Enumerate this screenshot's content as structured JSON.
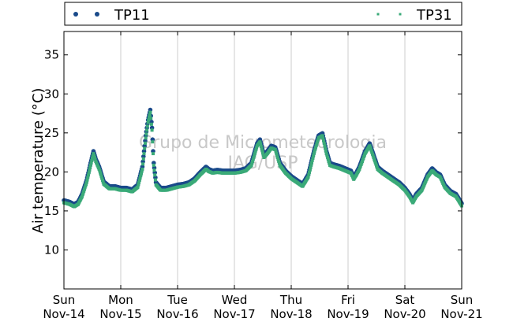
{
  "chart_data": {
    "type": "scatter",
    "ylabel": "Air temperature (°C)",
    "watermark": [
      "Grupo de Micrometeorologia",
      "IAG/USP"
    ],
    "ylim": [
      5,
      38
    ],
    "yticks": [
      10,
      15,
      20,
      25,
      30,
      35
    ],
    "xlim": [
      "2010-11-14",
      "2010-11-21"
    ],
    "xticks": [
      {
        "day": "Sun",
        "date": "Nov-14"
      },
      {
        "day": "Mon",
        "date": "Nov-15"
      },
      {
        "day": "Tue",
        "date": "Nov-16"
      },
      {
        "day": "Wed",
        "date": "Nov-17"
      },
      {
        "day": "Thu",
        "date": "Nov-18"
      },
      {
        "day": "Fri",
        "date": "Nov-19"
      },
      {
        "day": "Sat",
        "date": "Nov-20"
      },
      {
        "day": "Sun",
        "date": "Nov-21"
      }
    ],
    "grid": "vertical",
    "legend_position": "top",
    "series": [
      {
        "name": "TP11",
        "color": "#1a4a8a",
        "marker": "circle"
      },
      {
        "name": "TP31",
        "color": "#3aaa78",
        "marker": "square"
      }
    ],
    "x_unit": "days since Nov-14 00:00",
    "profile": [
      [
        0.0,
        16.2
      ],
      [
        0.1,
        16.0
      ],
      [
        0.18,
        15.7
      ],
      [
        0.25,
        16.0
      ],
      [
        0.32,
        17.0
      ],
      [
        0.4,
        18.8
      ],
      [
        0.47,
        21.0
      ],
      [
        0.52,
        22.5
      ],
      [
        0.56,
        21.5
      ],
      [
        0.62,
        20.5
      ],
      [
        0.7,
        18.6
      ],
      [
        0.8,
        18.0
      ],
      [
        0.9,
        18.0
      ],
      [
        1.0,
        17.8
      ],
      [
        1.1,
        17.8
      ],
      [
        1.2,
        17.6
      ],
      [
        1.3,
        18.2
      ],
      [
        1.38,
        20.5
      ],
      [
        1.44,
        24.5
      ],
      [
        1.48,
        26.5
      ],
      [
        1.52,
        27.8
      ],
      [
        1.55,
        25.5
      ],
      [
        1.58,
        21.0
      ],
      [
        1.62,
        18.5
      ],
      [
        1.7,
        17.8
      ],
      [
        1.8,
        17.8
      ],
      [
        1.9,
        18.0
      ],
      [
        2.0,
        18.2
      ],
      [
        2.1,
        18.3
      ],
      [
        2.2,
        18.5
      ],
      [
        2.3,
        19.0
      ],
      [
        2.4,
        19.8
      ],
      [
        2.5,
        20.5
      ],
      [
        2.55,
        20.2
      ],
      [
        2.62,
        20.0
      ],
      [
        2.7,
        20.1
      ],
      [
        2.8,
        20.0
      ],
      [
        2.9,
        20.0
      ],
      [
        3.0,
        20.0
      ],
      [
        3.1,
        20.1
      ],
      [
        3.2,
        20.3
      ],
      [
        3.3,
        21.0
      ],
      [
        3.4,
        23.5
      ],
      [
        3.45,
        24.0
      ],
      [
        3.52,
        22.0
      ],
      [
        3.58,
        22.5
      ],
      [
        3.65,
        23.2
      ],
      [
        3.72,
        23.0
      ],
      [
        3.8,
        21.0
      ],
      [
        3.9,
        20.0
      ],
      [
        4.0,
        19.3
      ],
      [
        4.1,
        18.8
      ],
      [
        4.2,
        18.3
      ],
      [
        4.3,
        19.5
      ],
      [
        4.4,
        22.5
      ],
      [
        4.48,
        24.5
      ],
      [
        4.55,
        24.8
      ],
      [
        4.62,
        22.5
      ],
      [
        4.68,
        21.0
      ],
      [
        4.75,
        20.8
      ],
      [
        4.85,
        20.6
      ],
      [
        4.95,
        20.3
      ],
      [
        5.05,
        20.0
      ],
      [
        5.1,
        19.2
      ],
      [
        5.15,
        19.8
      ],
      [
        5.2,
        20.5
      ],
      [
        5.3,
        22.5
      ],
      [
        5.38,
        23.5
      ],
      [
        5.45,
        22.0
      ],
      [
        5.52,
        20.5
      ],
      [
        5.6,
        20.0
      ],
      [
        5.7,
        19.5
      ],
      [
        5.8,
        19.0
      ],
      [
        5.9,
        18.5
      ],
      [
        6.0,
        17.8
      ],
      [
        6.08,
        17.0
      ],
      [
        6.14,
        16.2
      ],
      [
        6.2,
        17.0
      ],
      [
        6.3,
        17.8
      ],
      [
        6.4,
        19.5
      ],
      [
        6.48,
        20.3
      ],
      [
        6.55,
        19.8
      ],
      [
        6.62,
        19.5
      ],
      [
        6.7,
        18.2
      ],
      [
        6.8,
        17.4
      ],
      [
        6.9,
        17.0
      ],
      [
        7.0,
        15.8
      ]
    ]
  }
}
